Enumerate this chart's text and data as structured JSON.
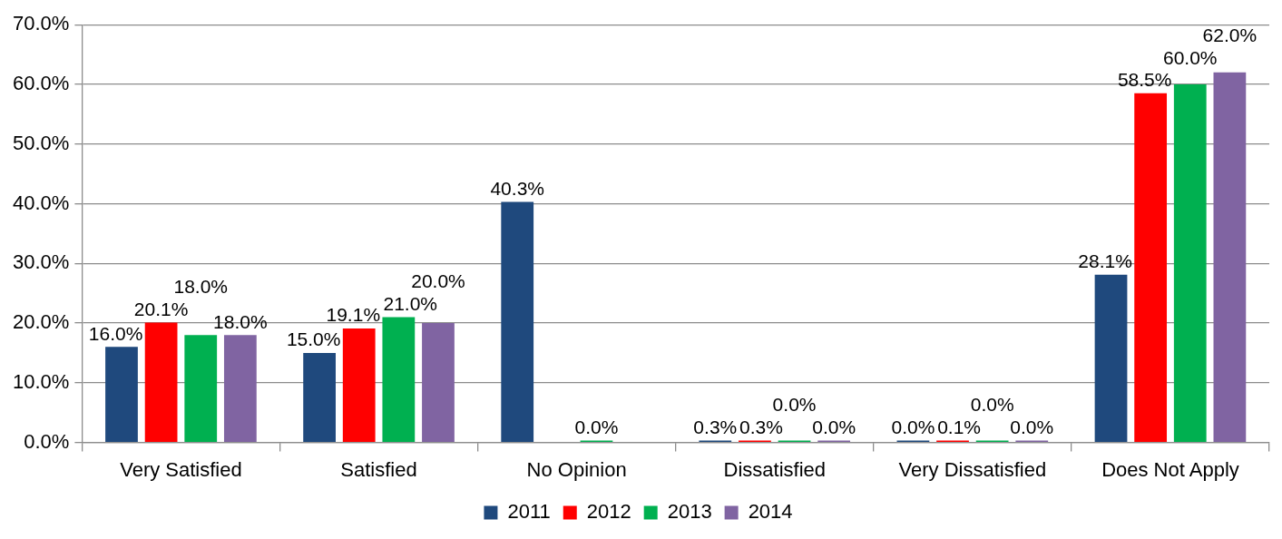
{
  "chart_data": {
    "type": "bar",
    "categories": [
      "Very Satisfied",
      "Satisfied",
      "No Opinion",
      "Dissatisfied",
      "Very Dissatisfied",
      "Does Not Apply"
    ],
    "series": [
      {
        "name": "2011",
        "color": "#1f497d",
        "values": [
          16.0,
          15.0,
          40.3,
          0.3,
          0.0,
          28.1
        ],
        "value_labels": [
          "16.0%",
          "15.0%",
          "40.3%",
          "0.3%",
          "0.0%",
          "28.1%"
        ]
      },
      {
        "name": "2012",
        "color": "#ff0000",
        "values": [
          20.1,
          19.1,
          null,
          0.3,
          0.1,
          58.5
        ],
        "value_labels": [
          "20.1%",
          "19.1%",
          null,
          "0.3%",
          "0.1%",
          "58.5%"
        ]
      },
      {
        "name": "2013",
        "color": "#00b050",
        "values": [
          18.0,
          21.0,
          0.0,
          0.0,
          0.0,
          60.0
        ],
        "value_labels": [
          "18.0%",
          "21.0%",
          "0.0%",
          "0.0%",
          "0.0%",
          "60.0%"
        ]
      },
      {
        "name": "2014",
        "color": "#8064a2",
        "values": [
          18.0,
          20.0,
          null,
          0.0,
          0.0,
          62.0
        ],
        "value_labels": [
          "18.0%",
          "20.0%",
          null,
          "0.0%",
          "0.0%",
          "62.0%"
        ]
      }
    ],
    "ylim": [
      0,
      70
    ],
    "yticks": [
      {
        "value": 0,
        "label": "0.0%"
      },
      {
        "value": 10,
        "label": "10.0%"
      },
      {
        "value": 20,
        "label": "20.0%"
      },
      {
        "value": 30,
        "label": "30.0%"
      },
      {
        "value": 40,
        "label": "40.0%"
      },
      {
        "value": 50,
        "label": "50.0%"
      },
      {
        "value": 60,
        "label": "60.0%"
      },
      {
        "value": 70,
        "label": "70.0%"
      }
    ],
    "grid": "y",
    "legend": "bottom"
  }
}
